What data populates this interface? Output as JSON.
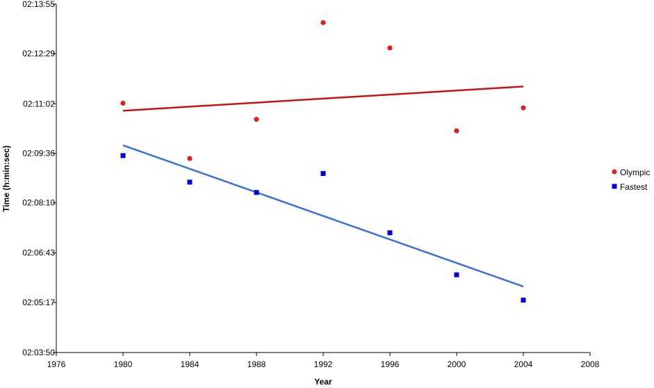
{
  "chart_data": {
    "type": "scatter",
    "title": "",
    "xlabel": "Year",
    "ylabel": "Time (h:min:sec)",
    "xlim": [
      1976,
      2008
    ],
    "x_ticks": [
      1976,
      1980,
      1984,
      1988,
      1992,
      1996,
      2000,
      2004,
      2008
    ],
    "ylim": [
      "02:03:50",
      "02:13:55"
    ],
    "y_ticks": [
      "02:03:50",
      "02:05:17",
      "02:06:43",
      "02:08:10",
      "02:09:36",
      "02:11:02",
      "02:12:29",
      "02:13:55"
    ],
    "grid": false,
    "legend_position": "right",
    "series": [
      {
        "name": "Olympic",
        "marker": "circle",
        "color": "#e02020",
        "trendline_color": "#cc1111",
        "trendline": "linear",
        "x": [
          1980,
          1984,
          1988,
          1992,
          1996,
          2000,
          2004
        ],
        "y": [
          "02:11:03",
          "02:09:27",
          "02:10:35",
          "02:13:23",
          "02:12:39",
          "02:10:15",
          "02:10:55"
        ]
      },
      {
        "name": "Fastest",
        "marker": "square",
        "color": "#0000dd",
        "trendline_color": "#3a6fd8",
        "trendline": "linear",
        "x": [
          1980,
          1984,
          1988,
          1992,
          1996,
          2000,
          2004
        ],
        "y": [
          "02:09:32",
          "02:08:46",
          "02:08:28",
          "02:09:01",
          "02:07:18",
          "02:06:05",
          "02:05:21"
        ]
      }
    ]
  }
}
